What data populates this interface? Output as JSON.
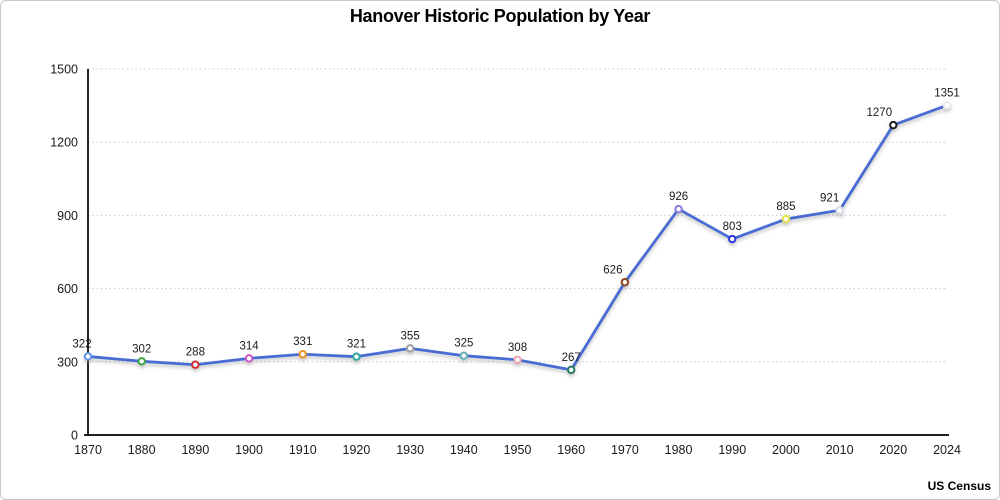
{
  "source": "US Census",
  "chart_data": {
    "type": "line",
    "title": "Hanover Historic Population by Year",
    "xlabel": "",
    "ylabel": "",
    "categories": [
      "1870",
      "1880",
      "1890",
      "1900",
      "1910",
      "1920",
      "1930",
      "1940",
      "1950",
      "1960",
      "1970",
      "1980",
      "1990",
      "2000",
      "2010",
      "2020",
      "2024"
    ],
    "values": [
      322,
      302,
      288,
      314,
      331,
      321,
      355,
      325,
      308,
      267,
      626,
      926,
      803,
      885,
      921,
      1270,
      1351
    ],
    "ylim": [
      0,
      1500
    ],
    "yticks": [
      0,
      300,
      600,
      900,
      1200,
      1500
    ],
    "grid": "horizontal-dotted",
    "legend": "none",
    "line_color": "#4a6cd3",
    "point_colors": [
      "#6495ed",
      "#3fa344",
      "#d02f32",
      "#cf56c9",
      "#e8941f",
      "#2ba79b",
      "#a0a0a0",
      "#66aebc",
      "#e9a6ac",
      "#297a66",
      "#8d4a21",
      "#8f7be0",
      "#2c35e0",
      "#e6e14b",
      "#dcdce8",
      "#1a1a1a",
      "#ececec"
    ],
    "annotations": "value label above each data point"
  }
}
